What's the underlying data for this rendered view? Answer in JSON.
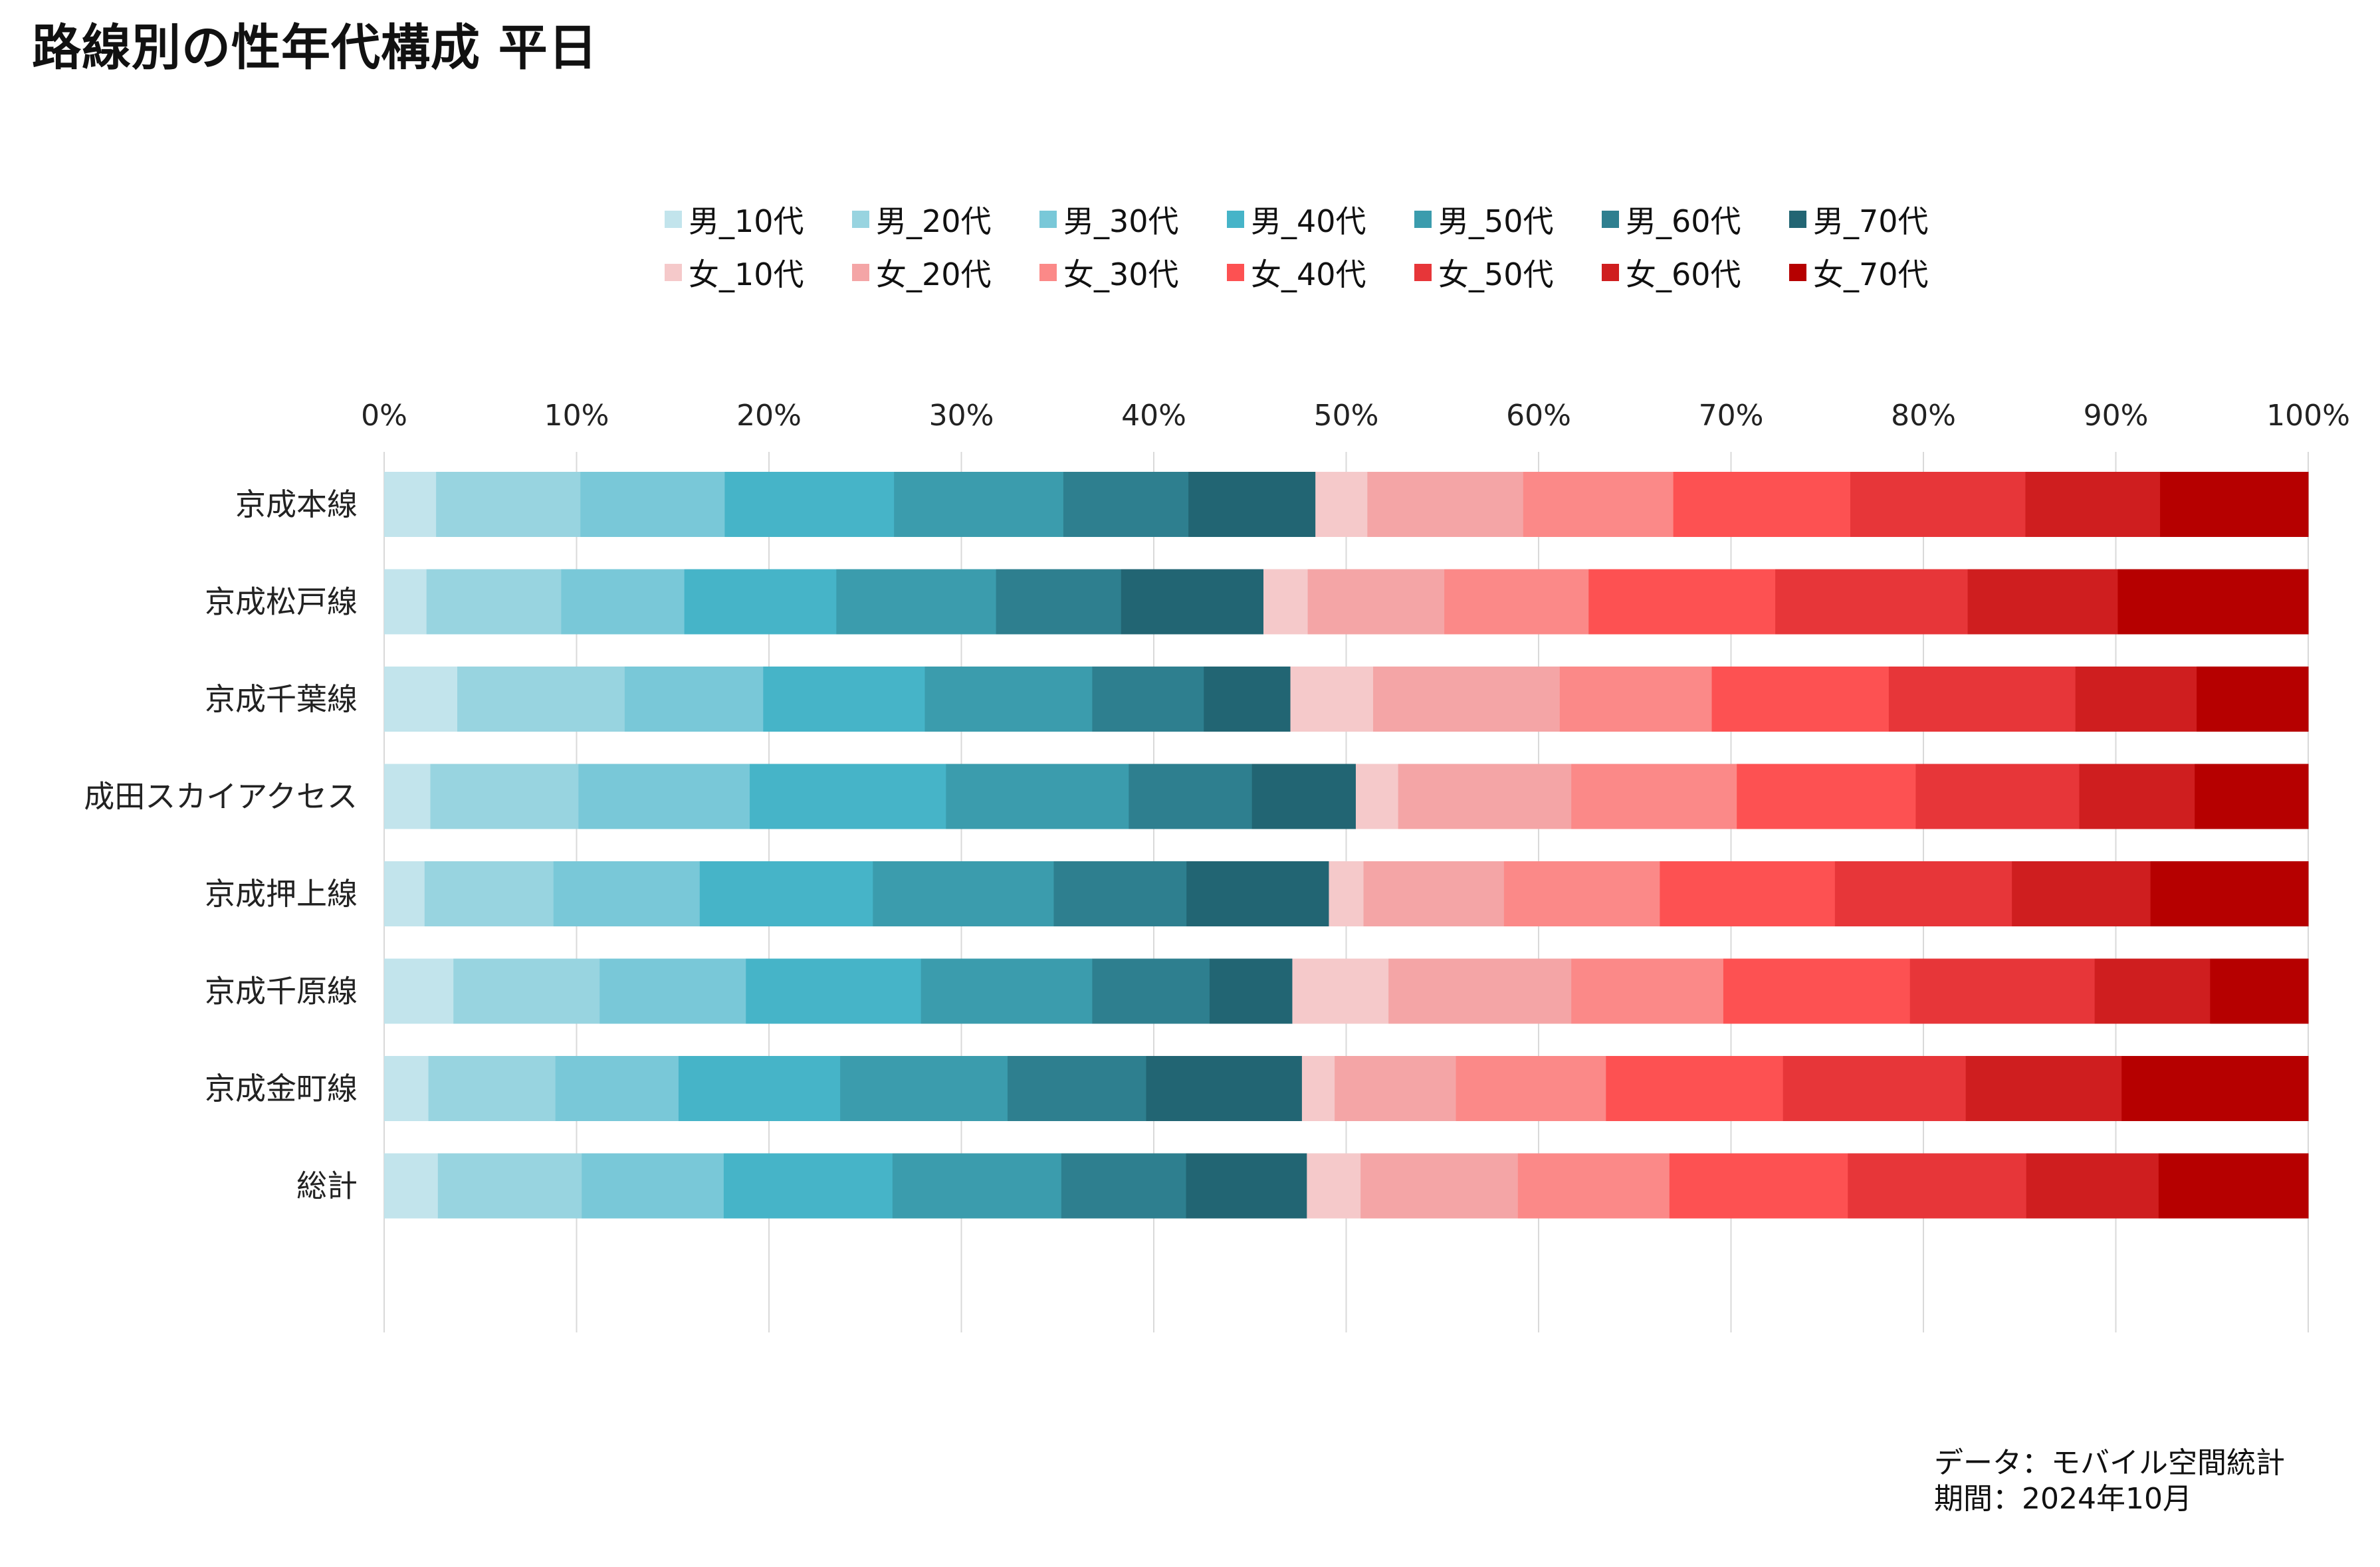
{
  "title": "路線別の性年代構成 平日",
  "source": {
    "line1": "データ：モバイル空間統計",
    "line2": "期間：2024年10月"
  },
  "chart_data": {
    "type": "bar",
    "orientation": "horizontal",
    "stacked": "percent",
    "title": "路線別の性年代構成 平日",
    "xlabel": "",
    "ylabel": "",
    "xlim": [
      0,
      100
    ],
    "x_ticks": [
      "0%",
      "10%",
      "20%",
      "30%",
      "40%",
      "50%",
      "60%",
      "70%",
      "80%",
      "90%",
      "100%"
    ],
    "grid": true,
    "legend_position": "top",
    "categories": [
      "京成本線",
      "京成松戸線",
      "京成千葉線",
      "成田スカイアクセス",
      "京成押上線",
      "京成千原線",
      "京成金町線",
      "総計"
    ],
    "series": [
      {
        "name": "男_10代",
        "color": "#c2e4ec",
        "values": [
          2.7,
          2.2,
          3.8,
          2.4,
          2.1,
          3.6,
          2.3,
          2.8
        ]
      },
      {
        "name": "男_20代",
        "color": "#98d4e0",
        "values": [
          7.5,
          7.0,
          8.7,
          7.7,
          6.7,
          7.6,
          6.6,
          7.5
        ]
      },
      {
        "name": "男_30代",
        "color": "#79c8d8",
        "values": [
          7.5,
          6.4,
          7.2,
          8.9,
          7.6,
          7.6,
          6.4,
          7.4
        ]
      },
      {
        "name": "男_40代",
        "color": "#46b4c8",
        "values": [
          8.8,
          7.9,
          8.4,
          10.2,
          9.0,
          9.1,
          8.4,
          8.8
        ]
      },
      {
        "name": "男_50代",
        "color": "#3b9cad",
        "values": [
          8.8,
          8.3,
          8.7,
          9.5,
          9.4,
          8.9,
          8.7,
          8.8
        ]
      },
      {
        "name": "男_60代",
        "color": "#2e7f8f",
        "values": [
          6.5,
          6.5,
          5.8,
          6.4,
          6.9,
          6.1,
          7.2,
          6.5
        ]
      },
      {
        "name": "男_70代",
        "color": "#226573",
        "values": [
          6.6,
          7.4,
          4.5,
          5.4,
          7.4,
          4.3,
          8.1,
          6.3
        ]
      },
      {
        "name": "女_10代",
        "color": "#f5c9ca",
        "values": [
          2.7,
          2.3,
          4.3,
          2.2,
          1.8,
          5.0,
          1.7,
          2.8
        ]
      },
      {
        "name": "女_20代",
        "color": "#f4a5a6",
        "values": [
          8.1,
          7.1,
          9.7,
          9.0,
          7.3,
          9.5,
          6.3,
          8.2
        ]
      },
      {
        "name": "女_30代",
        "color": "#fb8988",
        "values": [
          7.8,
          7.5,
          7.9,
          8.6,
          8.1,
          7.9,
          7.8,
          7.9
        ]
      },
      {
        "name": "女_40代",
        "color": "#fd5152",
        "values": [
          9.2,
          9.7,
          9.2,
          9.3,
          9.1,
          9.7,
          9.2,
          9.3
        ]
      },
      {
        "name": "女_50代",
        "color": "#e73639",
        "values": [
          9.1,
          10.0,
          9.7,
          8.5,
          9.2,
          9.6,
          9.5,
          9.3
        ]
      },
      {
        "name": "女_60代",
        "color": "#cf1e1f",
        "values": [
          7.0,
          7.8,
          6.3,
          6.0,
          7.2,
          6.0,
          8.1,
          6.9
        ]
      },
      {
        "name": "女_70代",
        "color": "#b60000",
        "values": [
          7.7,
          9.9,
          5.8,
          5.9,
          8.2,
          5.1,
          9.7,
          7.8
        ]
      }
    ]
  }
}
